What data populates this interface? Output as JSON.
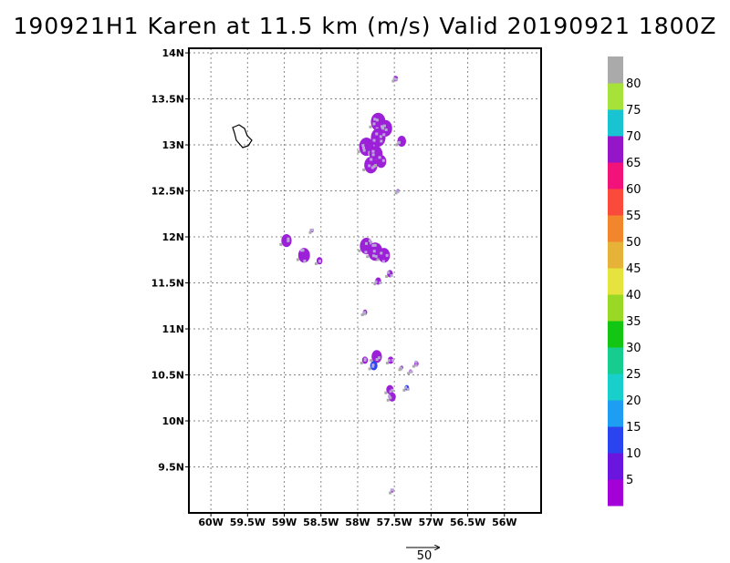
{
  "title": "190921H1 Karen at 11.5 km (m/s) Valid 20190921 1800Z",
  "map": {
    "lon_range": [
      -60.3,
      -55.5
    ],
    "lat_range": [
      9.0,
      14.05
    ],
    "x_ticks": [
      {
        "value": -60.0,
        "label": "60W"
      },
      {
        "value": -59.5,
        "label": "59.5W"
      },
      {
        "value": -59.0,
        "label": "59W"
      },
      {
        "value": -58.5,
        "label": "58.5W"
      },
      {
        "value": -58.0,
        "label": "58W"
      },
      {
        "value": -57.5,
        "label": "57.5W"
      },
      {
        "value": -57.0,
        "label": "57W"
      },
      {
        "value": -56.5,
        "label": "56.5W"
      },
      {
        "value": -56.0,
        "label": "56W"
      }
    ],
    "y_ticks": [
      {
        "value": 14.0,
        "label": "14N"
      },
      {
        "value": 13.5,
        "label": "13.5N"
      },
      {
        "value": 13.0,
        "label": "13N"
      },
      {
        "value": 12.5,
        "label": "12.5N"
      },
      {
        "value": 12.0,
        "label": "12N"
      },
      {
        "value": 11.5,
        "label": "11.5N"
      },
      {
        "value": 11.0,
        "label": "11N"
      },
      {
        "value": 10.5,
        "label": "10.5N"
      },
      {
        "value": 10.0,
        "label": "10N"
      },
      {
        "value": 9.5,
        "label": "9.5N"
      }
    ],
    "grid": true,
    "coastline": "Barbados",
    "wind_patches": [
      {
        "lon": -57.48,
        "lat": 13.72,
        "color": "#9c20d8",
        "r": 0.03
      },
      {
        "lon": -57.72,
        "lat": 13.25,
        "color": "#9c20d8",
        "r": 0.1
      },
      {
        "lon": -57.62,
        "lat": 13.18,
        "color": "#9c20d8",
        "r": 0.09
      },
      {
        "lon": -57.72,
        "lat": 13.08,
        "color": "#9c20d8",
        "r": 0.1
      },
      {
        "lon": -57.88,
        "lat": 12.98,
        "color": "#9c20d8",
        "r": 0.1
      },
      {
        "lon": -57.75,
        "lat": 12.9,
        "color": "#9c20d8",
        "r": 0.09
      },
      {
        "lon": -57.82,
        "lat": 12.78,
        "color": "#9c20d8",
        "r": 0.09
      },
      {
        "lon": -57.68,
        "lat": 12.82,
        "color": "#9c20d8",
        "r": 0.07
      },
      {
        "lon": -57.4,
        "lat": 13.04,
        "color": "#9c20d8",
        "r": 0.06
      },
      {
        "lon": -57.45,
        "lat": 12.5,
        "color": "#9c20d8",
        "r": 0.02
      },
      {
        "lon": -57.88,
        "lat": 11.9,
        "color": "#9c20d8",
        "r": 0.09
      },
      {
        "lon": -57.76,
        "lat": 11.84,
        "color": "#9c20d8",
        "r": 0.1
      },
      {
        "lon": -57.64,
        "lat": 11.8,
        "color": "#9c20d8",
        "r": 0.08
      },
      {
        "lon": -57.72,
        "lat": 11.52,
        "color": "#9c20d8",
        "r": 0.04
      },
      {
        "lon": -57.56,
        "lat": 11.6,
        "color": "#9c20d8",
        "r": 0.04
      },
      {
        "lon": -58.97,
        "lat": 11.96,
        "color": "#9c20d8",
        "r": 0.07
      },
      {
        "lon": -58.73,
        "lat": 11.8,
        "color": "#9c20d8",
        "r": 0.08
      },
      {
        "lon": -58.52,
        "lat": 11.74,
        "color": "#9c20d8",
        "r": 0.04
      },
      {
        "lon": -58.62,
        "lat": 12.07,
        "color": "#9c20d8",
        "r": 0.02
      },
      {
        "lon": -57.9,
        "lat": 11.18,
        "color": "#9c20d8",
        "r": 0.03
      },
      {
        "lon": -57.74,
        "lat": 10.7,
        "color": "#9c20d8",
        "r": 0.07
      },
      {
        "lon": -57.9,
        "lat": 10.66,
        "color": "#9c20d8",
        "r": 0.04
      },
      {
        "lon": -57.78,
        "lat": 10.6,
        "color": "#2a45f0",
        "r": 0.05
      },
      {
        "lon": -57.55,
        "lat": 10.66,
        "color": "#9c20d8",
        "r": 0.04
      },
      {
        "lon": -57.4,
        "lat": 10.58,
        "color": "#9c20d8",
        "r": 0.02
      },
      {
        "lon": -57.2,
        "lat": 10.62,
        "color": "#9c20d8",
        "r": 0.03
      },
      {
        "lon": -57.28,
        "lat": 10.54,
        "color": "#9c20d8",
        "r": 0.02
      },
      {
        "lon": -57.56,
        "lat": 10.34,
        "color": "#9c20d8",
        "r": 0.05
      },
      {
        "lon": -57.53,
        "lat": 10.26,
        "color": "#9c20d8",
        "r": 0.05
      },
      {
        "lon": -57.33,
        "lat": 10.36,
        "color": "#2a45f0",
        "r": 0.03
      },
      {
        "lon": -57.53,
        "lat": 9.24,
        "color": "#9c20d8",
        "r": 0.02
      }
    ]
  },
  "colorbar": {
    "segments": [
      {
        "color": "#a400d8"
      },
      {
        "color": "#6a16de"
      },
      {
        "color": "#2a45f0"
      },
      {
        "color": "#1e9ef2"
      },
      {
        "color": "#18cfcb"
      },
      {
        "color": "#16cc8e"
      },
      {
        "color": "#14c614"
      },
      {
        "color": "#9ad826"
      },
      {
        "color": "#e6e23e"
      },
      {
        "color": "#e7b238"
      },
      {
        "color": "#f2862c"
      },
      {
        "color": "#fa4a3c"
      },
      {
        "color": "#f2137a"
      },
      {
        "color": "#9416c8"
      },
      {
        "color": "#18c4d2"
      },
      {
        "color": "#a6e23a"
      },
      {
        "color": "#aaaaaa"
      }
    ],
    "labels": [
      "5",
      "10",
      "15",
      "20",
      "25",
      "30",
      "35",
      "40",
      "45",
      "50",
      "55",
      "60",
      "65",
      "70",
      "75",
      "80"
    ]
  },
  "reference_vector": {
    "label": "50"
  }
}
